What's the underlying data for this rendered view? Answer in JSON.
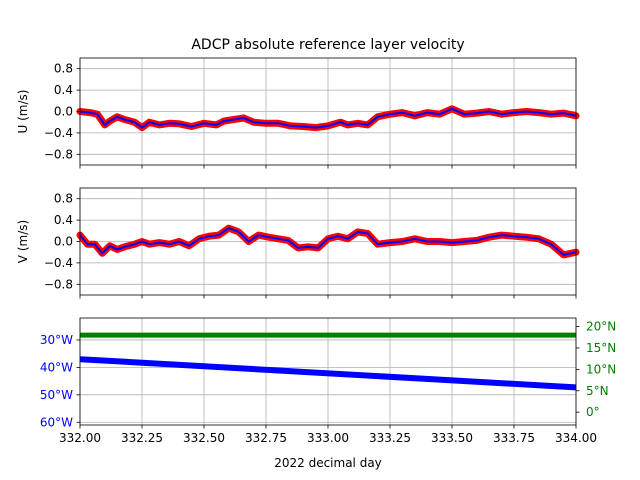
{
  "figure": {
    "title": "ADCP absolute reference layer velocity",
    "xlabel": "2022 decimal day"
  },
  "colors": {
    "raw": "#ff0000",
    "smoothed": "#0000ff",
    "longitude": "#0000ff",
    "latitude": "#008000",
    "grid": "#b0b0b0",
    "axis": "#000000"
  },
  "chart_data": [
    {
      "type": "line",
      "panel": "u",
      "ylabel": "U (m/s)",
      "xlim": [
        332.0,
        334.0
      ],
      "ylim": [
        -1.0,
        1.0
      ],
      "xticks": [
        332.0,
        332.25,
        332.5,
        332.75,
        333.0,
        333.25,
        333.5,
        333.75,
        334.0
      ],
      "yticks": [
        -0.8,
        -0.4,
        0.0,
        0.4,
        0.8
      ],
      "ytick_labels": [
        "−0.8",
        "−0.4",
        "0.0",
        "0.4",
        "0.8"
      ],
      "grid": true,
      "x": [
        332.0,
        332.04,
        332.07,
        332.1,
        332.12,
        332.15,
        332.18,
        332.22,
        332.25,
        332.28,
        332.32,
        332.36,
        332.4,
        332.45,
        332.5,
        332.55,
        332.58,
        332.62,
        332.66,
        332.7,
        332.75,
        332.8,
        332.85,
        332.9,
        332.95,
        333.0,
        333.05,
        333.08,
        333.12,
        333.16,
        333.2,
        333.25,
        333.3,
        333.35,
        333.4,
        333.45,
        333.5,
        333.55,
        333.6,
        333.65,
        333.7,
        333.75,
        333.8,
        333.85,
        333.9,
        333.95,
        334.0
      ],
      "series": [
        {
          "values": [
            0.0,
            -0.02,
            -0.05,
            -0.25,
            -0.18,
            -0.1,
            -0.15,
            -0.2,
            -0.3,
            -0.2,
            -0.25,
            -0.22,
            -0.23,
            -0.28,
            -0.22,
            -0.25,
            -0.18,
            -0.15,
            -0.12,
            -0.2,
            -0.22,
            -0.22,
            -0.27,
            -0.28,
            -0.3,
            -0.27,
            -0.2,
            -0.25,
            -0.22,
            -0.25,
            -0.1,
            -0.05,
            -0.02,
            -0.08,
            -0.02,
            -0.05,
            0.05,
            -0.05,
            -0.03,
            0.0,
            -0.05,
            -0.02,
            0.0,
            -0.02,
            -0.05,
            -0.03,
            -0.08
          ]
        }
      ]
    },
    {
      "type": "line",
      "panel": "v",
      "ylabel": "V (m/s)",
      "xlim": [
        332.0,
        334.0
      ],
      "ylim": [
        -1.0,
        1.0
      ],
      "xticks": [
        332.0,
        332.25,
        332.5,
        332.75,
        333.0,
        333.25,
        333.5,
        333.75,
        334.0
      ],
      "yticks": [
        -0.8,
        -0.4,
        0.0,
        0.4,
        0.8
      ],
      "ytick_labels": [
        "−0.8",
        "−0.4",
        "0.0",
        "0.4",
        "0.8"
      ],
      "grid": true,
      "x": [
        332.0,
        332.03,
        332.06,
        332.09,
        332.12,
        332.15,
        332.18,
        332.22,
        332.25,
        332.28,
        332.32,
        332.36,
        332.4,
        332.44,
        332.48,
        332.52,
        332.56,
        332.6,
        332.64,
        332.68,
        332.72,
        332.76,
        332.8,
        332.84,
        332.88,
        332.92,
        332.96,
        333.0,
        333.04,
        333.08,
        333.12,
        333.16,
        333.2,
        333.25,
        333.3,
        333.35,
        333.4,
        333.45,
        333.5,
        333.55,
        333.6,
        333.65,
        333.7,
        333.75,
        333.8,
        333.85,
        333.9,
        333.95,
        334.0
      ],
      "series": [
        {
          "values": [
            0.12,
            -0.05,
            -0.05,
            -0.22,
            -0.08,
            -0.15,
            -0.1,
            -0.05,
            0.0,
            -0.05,
            -0.02,
            -0.05,
            0.0,
            -0.08,
            0.05,
            0.1,
            0.12,
            0.25,
            0.18,
            0.0,
            0.12,
            0.08,
            0.05,
            0.02,
            -0.12,
            -0.1,
            -0.12,
            0.05,
            0.1,
            0.05,
            0.18,
            0.15,
            -0.05,
            -0.02,
            0.0,
            0.05,
            0.0,
            0.0,
            -0.02,
            0.0,
            0.02,
            0.08,
            0.12,
            0.1,
            0.08,
            0.05,
            -0.05,
            -0.25,
            -0.2
          ]
        }
      ]
    },
    {
      "type": "line",
      "panel": "position",
      "xlim": [
        332.0,
        334.0
      ],
      "xticks": [
        332.0,
        332.25,
        332.5,
        332.75,
        333.0,
        333.25,
        333.5,
        333.75,
        334.0
      ],
      "xtick_labels": [
        "332.00",
        "332.25",
        "332.50",
        "332.75",
        "333.00",
        "333.25",
        "333.50",
        "333.75",
        "334.00"
      ],
      "xlabel": "2022 decimal day",
      "grid": true,
      "left_axis": {
        "ylim": [
          -61.0,
          -22.0
        ],
        "yticks": [
          -30,
          -40,
          -50,
          -60
        ],
        "ytick_labels": [
          "30°W",
          "40°W",
          "50°W",
          "60°W"
        ]
      },
      "right_axis": {
        "ylim": [
          -3.0,
          22.0
        ],
        "yticks": [
          0,
          5,
          10,
          15,
          20
        ],
        "ytick_labels": [
          "0°",
          "5°N",
          "10°N",
          "15°N",
          "20°N"
        ]
      },
      "x": [
        332.0,
        334.0
      ],
      "series": [
        {
          "axis": "left",
          "values": [
            -37.0,
            -47.3
          ]
        },
        {
          "axis": "right",
          "values": [
            18.0,
            18.0
          ]
        }
      ]
    }
  ]
}
